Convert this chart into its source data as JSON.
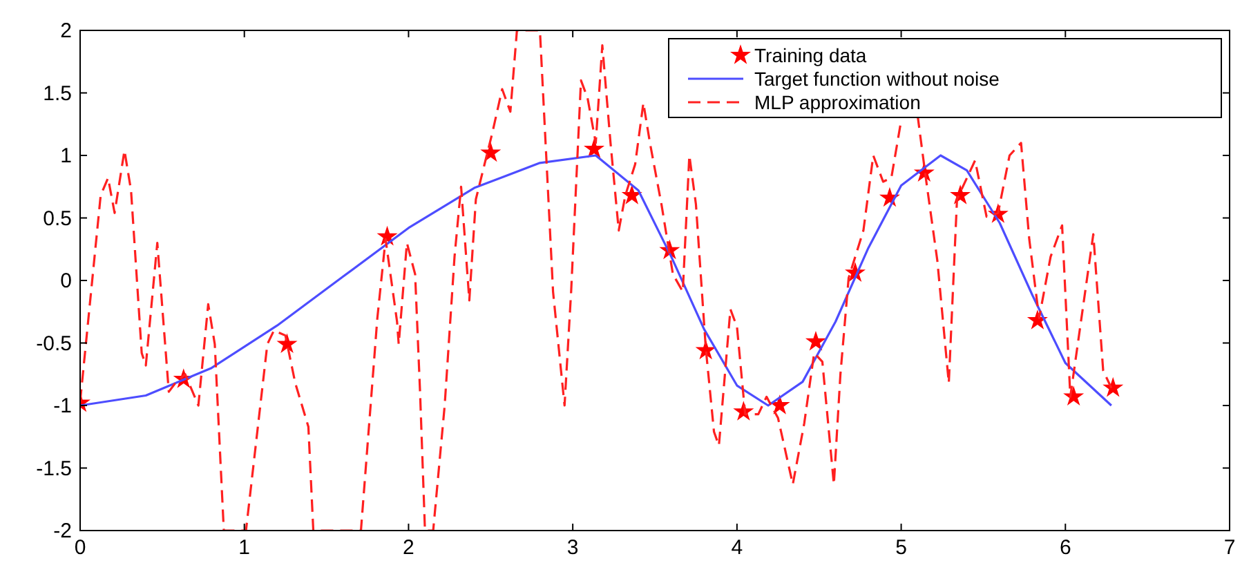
{
  "chart_data": {
    "type": "line",
    "xlim": [
      0,
      7
    ],
    "ylim": [
      -2,
      2
    ],
    "xticks": [
      0,
      1,
      2,
      3,
      4,
      5,
      6,
      7
    ],
    "yticks": [
      -2,
      -1.5,
      -1,
      -0.5,
      0,
      0.5,
      1,
      1.5,
      2
    ],
    "grid": false,
    "legend": "top right",
    "series": [
      {
        "name": "Training data",
        "type": "scatter",
        "marker": "star",
        "color": "#ff0000",
        "x": [
          0,
          0.63,
          1.26,
          1.87,
          2.5,
          3.13,
          3.36,
          3.59,
          3.81,
          4.04,
          4.26,
          4.48,
          4.72,
          4.93,
          5.14,
          5.36,
          5.59,
          5.83,
          6.05,
          6.29
        ],
        "values": [
          -0.98,
          -0.79,
          -0.51,
          0.35,
          1.02,
          1.05,
          0.68,
          0.24,
          -0.56,
          -1.05,
          -1,
          -0.49,
          0.06,
          0.66,
          0.86,
          0.68,
          0.53,
          -0.32,
          -0.93,
          -0.86
        ]
      },
      {
        "name": "Target function without noise",
        "marker": "none",
        "line_style": "solid",
        "color": "#4d4dff",
        "x": [
          0,
          0.4,
          0.8,
          1.2,
          1.6,
          2,
          2.4,
          2.8,
          3.14,
          3.4,
          3.6,
          3.8,
          4,
          4.19,
          4.4,
          4.6,
          4.8,
          5,
          5.24,
          5.4,
          5.6,
          5.8,
          6,
          6.28
        ],
        "values": [
          -1,
          -0.92,
          -0.7,
          -0.36,
          0.03,
          0.42,
          0.74,
          0.94,
          1,
          0.72,
          0.19,
          -0.39,
          -0.84,
          -1,
          -0.81,
          -0.33,
          0.26,
          0.76,
          1,
          0.88,
          0.46,
          -0.12,
          -0.66,
          -1
        ]
      },
      {
        "name": "MLP approximation",
        "marker": "none",
        "line_style": "dashed",
        "color": "#ff2020",
        "x": [
          0,
          0.125,
          0.17,
          0.21,
          0.27,
          0.31,
          0.375,
          0.4,
          0.47,
          0.54,
          0.58,
          0.64,
          0.72,
          0.78,
          0.82,
          0.875,
          1.01,
          1.14,
          1.18,
          1.25,
          1.31,
          1.39,
          1.42,
          1.71,
          1.81,
          1.86,
          1.93,
          1.94,
          1.99,
          2.04,
          2.07,
          2.1,
          2.15,
          2.22,
          2.28,
          2.32,
          2.37,
          2.41,
          2.51,
          2.57,
          2.62,
          2.66,
          2.8,
          2.88,
          2.95,
          2.99,
          3.05,
          3.09,
          3.14,
          3.18,
          3.23,
          3.28,
          3.32,
          3.38,
          3.43,
          3.47,
          3.54,
          3.61,
          3.67,
          3.71,
          3.75,
          3.81,
          3.86,
          3.89,
          3.96,
          4,
          4.05,
          4.13,
          4.18,
          4.25,
          4.34,
          4.41,
          4.47,
          4.52,
          4.59,
          4.63,
          4.68,
          4.77,
          4.83,
          4.89,
          4.94,
          5,
          5.03,
          5.1,
          5.15,
          5.22,
          5.29,
          5.34,
          5.45,
          5.52,
          5.59,
          5.66,
          5.73,
          5.78,
          5.84,
          5.91,
          5.98,
          6.03,
          6.17,
          6.23,
          6.28
        ],
        "values": [
          -0.97,
          0.68,
          0.82,
          0.54,
          1.04,
          0.72,
          -0.58,
          -0.68,
          0.3,
          -0.89,
          -0.82,
          -0.75,
          -1,
          -0.19,
          -0.51,
          -2,
          -2,
          -0.51,
          -0.4,
          -0.44,
          -0.82,
          -1.17,
          -2,
          -2,
          -0.3,
          0.33,
          -0.33,
          -0.51,
          0.3,
          0.05,
          -0.89,
          -2,
          -2,
          -1,
          0.19,
          0.75,
          -0.16,
          0.65,
          1.18,
          1.53,
          1.35,
          2,
          2,
          -0.09,
          -1,
          -0.09,
          1.6,
          1.46,
          1.1,
          1.88,
          1.1,
          0.4,
          0.68,
          0.93,
          1.42,
          1.1,
          0.61,
          0.05,
          -0.09,
          1,
          0.61,
          -0.54,
          -1.21,
          -1.32,
          -0.23,
          -0.37,
          -1.07,
          -1.07,
          -0.93,
          -1.1,
          -1.63,
          -1.14,
          -0.58,
          -0.65,
          -1.63,
          -0.75,
          0.02,
          0.4,
          1,
          0.79,
          0.82,
          1.28,
          null,
          1.32,
          0.82,
          0.16,
          -0.82,
          0.65,
          0.96,
          0.51,
          0.54,
          1,
          1.1,
          0.33,
          -0.3,
          0.19,
          0.44,
          -0.93,
          0.37,
          -0.72,
          -0.86
        ]
      }
    ]
  }
}
